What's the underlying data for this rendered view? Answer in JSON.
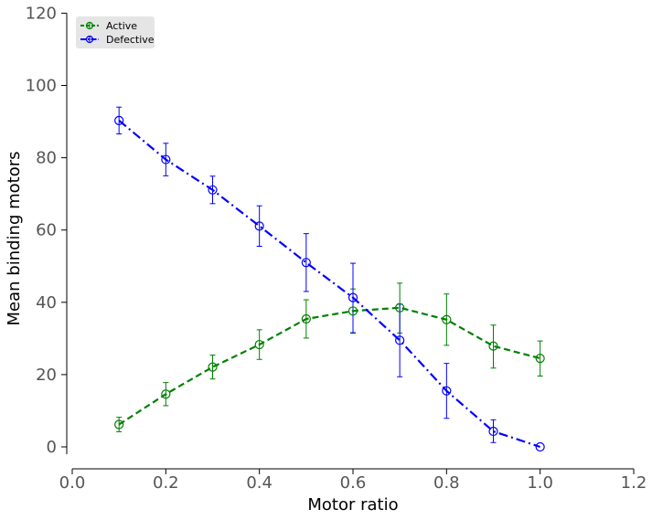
{
  "chart_data": {
    "type": "line",
    "xlabel": "Motor ratio",
    "ylabel": "Mean binding motors",
    "xlim": [
      0.0,
      1.2
    ],
    "ylim": [
      -5,
      120
    ],
    "x_ticks": [
      "0.0",
      "0.2",
      "0.4",
      "0.6",
      "0.8",
      "1.0",
      "1.2"
    ],
    "y_ticks": [
      "0",
      "20",
      "40",
      "60",
      "80",
      "100",
      "120"
    ],
    "grid": false,
    "legend_position": "top-left",
    "series": [
      {
        "name": "Active",
        "color": "#008000",
        "line_style": "dashed",
        "marker": "open-circle",
        "x": [
          0.1,
          0.2,
          0.3,
          0.4,
          0.5,
          0.6,
          0.7,
          0.8,
          0.9,
          1.0
        ],
        "y": [
          6.2,
          14.6,
          22.1,
          28.3,
          35.4,
          37.6,
          38.5,
          35.2,
          27.9,
          24.5
        ],
        "err_low": [
          2.0,
          3.2,
          3.3,
          4.1,
          5.3,
          6.0,
          7.0,
          7.1,
          6.1,
          4.9
        ],
        "err_high": [
          2.0,
          3.2,
          3.3,
          4.1,
          5.3,
          6.1,
          6.8,
          7.1,
          5.8,
          4.8
        ]
      },
      {
        "name": "Defective",
        "color": "#0000ff",
        "line_style": "dash-dot",
        "marker": "open-circle",
        "x": [
          0.1,
          0.2,
          0.3,
          0.4,
          0.5,
          0.6,
          0.7,
          0.8,
          0.9,
          1.0
        ],
        "y": [
          90.3,
          79.5,
          71.1,
          61.1,
          51.0,
          41.3,
          29.5,
          15.5,
          4.3,
          0.0
        ],
        "err_low": [
          3.7,
          4.5,
          3.8,
          5.6,
          8.0,
          9.8,
          10.1,
          7.6,
          3.1,
          0.0
        ],
        "err_high": [
          3.7,
          4.5,
          3.8,
          5.6,
          8.0,
          9.5,
          10.0,
          7.6,
          3.2,
          0.0
        ]
      }
    ]
  }
}
